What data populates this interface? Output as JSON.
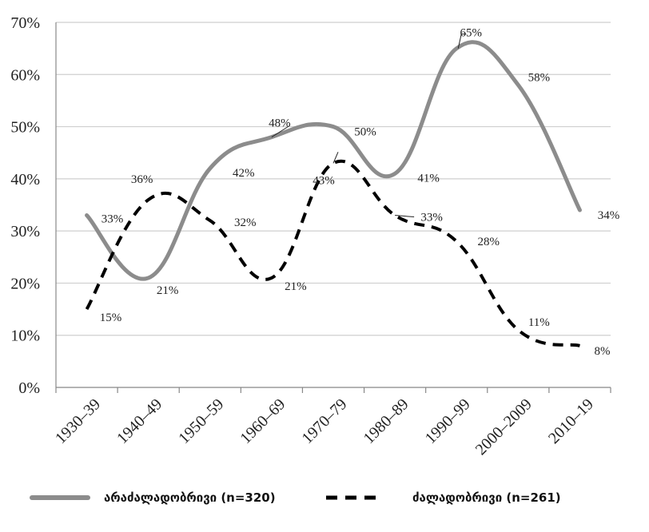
{
  "chart_data": {
    "type": "line",
    "categories": [
      "1930–39",
      "1940–49",
      "1950–59",
      "1960–69",
      "1970–79",
      "1980–89",
      "1990–99",
      "2000–2009",
      "2010–19"
    ],
    "ylim": [
      0,
      70
    ],
    "yticks": [
      0,
      10,
      20,
      30,
      40,
      50,
      60,
      70
    ],
    "ytick_labels": [
      "0%",
      "10%",
      "20%",
      "30%",
      "40%",
      "50%",
      "60%",
      "70%"
    ],
    "grid": true,
    "legend_position": "bottom",
    "series": [
      {
        "name": "არაძალადობრივი (n=320)",
        "style": "solid",
        "color": "#8c8c8c",
        "values": [
          33,
          21,
          42,
          48,
          50,
          41,
          65,
          58,
          34
        ],
        "labels": [
          "33%",
          "21%",
          "42%",
          "48%",
          "50%",
          "41%",
          "65%",
          "58%",
          "34%"
        ]
      },
      {
        "name": "ძალადობრივი (n=261)",
        "style": "dashed",
        "color": "#000000",
        "values": [
          15,
          36,
          32,
          21,
          43,
          33,
          28,
          11,
          8
        ],
        "labels": [
          "15%",
          "36%",
          "32%",
          "21%",
          "43%",
          "33%",
          "28%",
          "11%",
          "8%"
        ]
      }
    ]
  }
}
